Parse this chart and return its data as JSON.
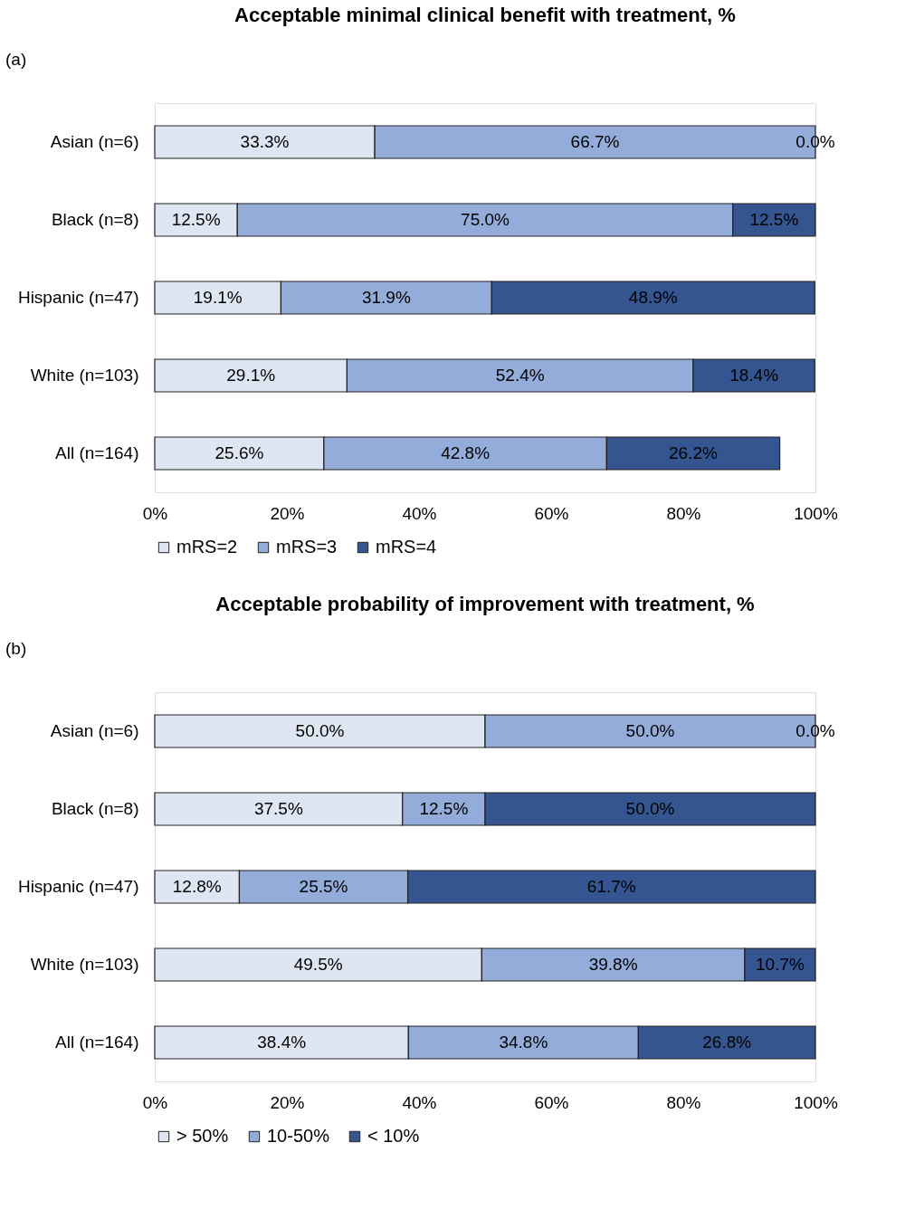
{
  "chart_data": [
    {
      "type": "bar",
      "orientation": "horizontal",
      "stacked": true,
      "title": "Acceptable minimal clinical benefit with treatment, %",
      "annotations": [
        "(a)"
      ],
      "categories": [
        "Asian (n=6)",
        "Black (n=8)",
        "Hispanic (n=47)",
        "White (n=103)",
        "All (n=164)"
      ],
      "series": [
        {
          "name": "mRS=2",
          "color": "#dfe6f3",
          "values": [
            33.3,
            12.5,
            19.1,
            29.1,
            25.6
          ],
          "value_labels": [
            "33.3%",
            "12.5%",
            "19.1%",
            "29.1%",
            "25.6%"
          ]
        },
        {
          "name": "mRS=3",
          "color": "#94acd9",
          "values": [
            66.7,
            75.0,
            31.9,
            52.4,
            42.8
          ],
          "value_labels": [
            "66.7%",
            "75.0%",
            "31.9%",
            "52.4%",
            "42.8%"
          ]
        },
        {
          "name": "mRS=4",
          "color": "#34558f",
          "values": [
            0.0,
            12.5,
            48.9,
            18.4,
            26.2
          ],
          "value_labels": [
            "0.0%",
            "12.5%",
            "48.9%",
            "18.4%",
            "26.2%"
          ]
        }
      ],
      "xlim": [
        0,
        100
      ],
      "xticks": [
        {
          "value": 0,
          "label": "0%"
        },
        {
          "value": 20,
          "label": "20%"
        },
        {
          "value": 40,
          "label": "40%"
        },
        {
          "value": 60,
          "label": "60%"
        },
        {
          "value": 80,
          "label": "80%"
        },
        {
          "value": 100,
          "label": "100%"
        }
      ],
      "legend": "bottom",
      "grid": false
    },
    {
      "type": "bar",
      "orientation": "horizontal",
      "stacked": true,
      "title": "Acceptable probability of improvement with treatment, %",
      "annotations": [
        "(b)"
      ],
      "categories": [
        "Asian (n=6)",
        "Black (n=8)",
        "Hispanic (n=47)",
        "White (n=103)",
        "All (n=164)"
      ],
      "series": [
        {
          "name": "> 50%",
          "color": "#dfe6f3",
          "values": [
            50.0,
            37.5,
            12.8,
            49.5,
            38.4
          ],
          "value_labels": [
            "50.0%",
            "37.5%",
            "12.8%",
            "49.5%",
            "38.4%"
          ]
        },
        {
          "name": "10-50%",
          "color": "#94acd9",
          "values": [
            50.0,
            12.5,
            25.5,
            39.8,
            34.8
          ],
          "value_labels": [
            "50.0%",
            "12.5%",
            "25.5%",
            "39.8%",
            "34.8%"
          ]
        },
        {
          "name": "< 10%",
          "color": "#34558f",
          "values": [
            0.0,
            50.0,
            61.7,
            10.7,
            26.8
          ],
          "value_labels": [
            "0.0%",
            "50.0%",
            "61.7%",
            "10.7%",
            "26.8%"
          ]
        }
      ],
      "xlim": [
        0,
        100
      ],
      "xticks": [
        {
          "value": 0,
          "label": "0%"
        },
        {
          "value": 20,
          "label": "20%"
        },
        {
          "value": 40,
          "label": "40%"
        },
        {
          "value": 60,
          "label": "60%"
        },
        {
          "value": 80,
          "label": "80%"
        },
        {
          "value": 100,
          "label": "100%"
        }
      ],
      "legend": "bottom",
      "grid": false
    }
  ]
}
